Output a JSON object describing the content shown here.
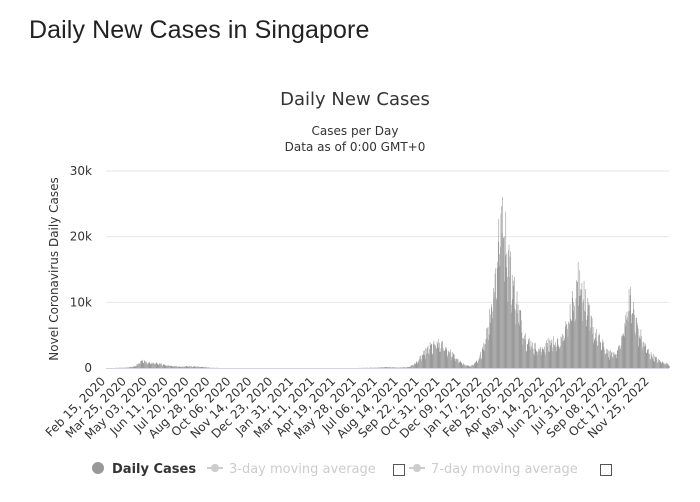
{
  "page": {
    "title": "Daily New Cases in Singapore"
  },
  "chart_data": {
    "type": "bar",
    "title": "Daily New Cases",
    "subtitle_line1": "Cases per Day",
    "subtitle_line2": "Data as of 0:00 GMT+0",
    "ylabel": "Novel Coronavirus Daily Cases",
    "xlabel": "",
    "ylim": [
      0,
      30000
    ],
    "ytick_labels": [
      "0",
      "10k",
      "20k",
      "30k"
    ],
    "ytick_values": [
      0,
      10000,
      20000,
      30000
    ],
    "x_range": [
      "2020-02-15",
      "2022-12-31"
    ],
    "xtick_labels": [
      "Feb 15, 2020",
      "Mar 25, 2020",
      "May 03, 2020",
      "Jun 11, 2020",
      "Jul 20, 2020",
      "Aug 28, 2020",
      "Oct 06, 2020",
      "Nov 14, 2020",
      "Dec 23, 2020",
      "Jan 31, 2021",
      "Mar 11, 2021",
      "Apr 19, 2021",
      "May 28, 2021",
      "Jul 06, 2021",
      "Aug 14, 2021",
      "Sep 22, 2021",
      "Oct 31, 2021",
      "Dec 09, 2021",
      "Jan 17, 2022",
      "Feb 25, 2022",
      "Apr 05, 2022",
      "May 14, 2022",
      "Jun 22, 2022",
      "Jul 31, 2022",
      "Sep 08, 2022",
      "Oct 17, 2022",
      "Nov 25, 2022"
    ],
    "grid": true,
    "legend_position": "bottom",
    "series": [
      {
        "name": "Daily Cases",
        "color": "#999999",
        "keypoints": [
          [
            "2020-02-15",
            5
          ],
          [
            "2020-03-25",
            60
          ],
          [
            "2020-04-10",
            300
          ],
          [
            "2020-04-20",
            1200
          ],
          [
            "2020-05-03",
            800
          ],
          [
            "2020-05-20",
            700
          ],
          [
            "2020-06-11",
            350
          ],
          [
            "2020-07-01",
            200
          ],
          [
            "2020-07-20",
            280
          ],
          [
            "2020-08-15",
            150
          ],
          [
            "2020-08-28",
            40
          ],
          [
            "2020-10-06",
            8
          ],
          [
            "2021-03-11",
            15
          ],
          [
            "2021-05-28",
            25
          ],
          [
            "2021-07-06",
            60
          ],
          [
            "2021-07-20",
            150
          ],
          [
            "2021-08-14",
            60
          ],
          [
            "2021-09-01",
            150
          ],
          [
            "2021-09-15",
            800
          ],
          [
            "2021-09-22",
            1500
          ],
          [
            "2021-10-10",
            3200
          ],
          [
            "2021-10-25",
            3700
          ],
          [
            "2021-11-05",
            3400
          ],
          [
            "2021-11-20",
            2200
          ],
          [
            "2021-12-09",
            700
          ],
          [
            "2021-12-25",
            250
          ],
          [
            "2022-01-10",
            1200
          ],
          [
            "2022-01-25",
            5500
          ],
          [
            "2022-02-08",
            13000
          ],
          [
            "2022-02-15",
            18500
          ],
          [
            "2022-02-23",
            25800
          ],
          [
            "2022-03-02",
            19500
          ],
          [
            "2022-03-12",
            14000
          ],
          [
            "2022-03-25",
            9000
          ],
          [
            "2022-04-05",
            5000
          ],
          [
            "2022-04-20",
            3500
          ],
          [
            "2022-05-05",
            2800
          ],
          [
            "2022-05-14",
            3500
          ],
          [
            "2022-05-28",
            4200
          ],
          [
            "2022-06-10",
            3700
          ],
          [
            "2022-06-22",
            6500
          ],
          [
            "2022-07-05",
            10500
          ],
          [
            "2022-07-15",
            15000
          ],
          [
            "2022-07-25",
            11500
          ],
          [
            "2022-07-31",
            9000
          ],
          [
            "2022-08-15",
            5200
          ],
          [
            "2022-08-30",
            3500
          ],
          [
            "2022-09-08",
            2200
          ],
          [
            "2022-09-25",
            2500
          ],
          [
            "2022-10-05",
            5000
          ],
          [
            "2022-10-12",
            8500
          ],
          [
            "2022-10-17",
            11500
          ],
          [
            "2022-10-27",
            8000
          ],
          [
            "2022-11-05",
            5500
          ],
          [
            "2022-11-15",
            3500
          ],
          [
            "2022-11-25",
            2200
          ],
          [
            "2022-12-10",
            1200
          ],
          [
            "2022-12-31",
            500
          ]
        ]
      },
      {
        "name": "3-day moving average",
        "color": "#cccccc"
      },
      {
        "name": "7-day moving average",
        "color": "#cccccc"
      }
    ]
  },
  "legend": {
    "items": [
      {
        "label": "Daily Cases",
        "icon": "circle-dot-icon"
      },
      {
        "label": "3-day moving average",
        "icon": "line-dot-icon"
      },
      {
        "label": "7-day moving average",
        "icon": "line-dot-icon"
      }
    ]
  }
}
